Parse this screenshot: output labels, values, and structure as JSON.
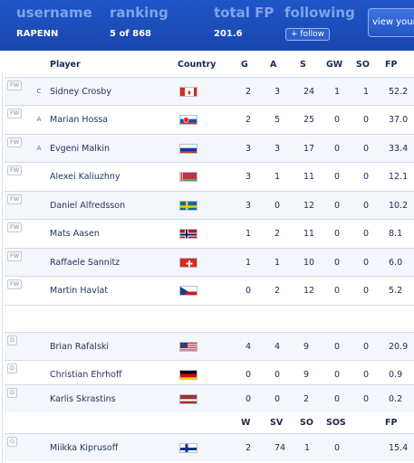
{
  "header": {
    "username_label": "username",
    "username": "RAPENN",
    "ranking_label": "ranking",
    "ranking": "5 of 868",
    "total_fp_label": "total FP",
    "total_fp": "201.6",
    "following_label": "following",
    "follow_button": "+ follow",
    "view_button": "view your"
  },
  "skater_columns": {
    "player": "Player",
    "country": "Country",
    "g": "G",
    "a": "A",
    "s": "S",
    "gw": "GW",
    "so": "SO",
    "fp": "FP"
  },
  "skaters": [
    {
      "pos": "FW",
      "role": "C",
      "name": "Sidney Crosby",
      "flag": "canada-flag",
      "g": "2",
      "a": "3",
      "s": "24",
      "gw": "1",
      "so": "1",
      "fp": "52.2"
    },
    {
      "pos": "FW",
      "role": "A",
      "name": "Marian Hossa",
      "flag": "slovakia-flag",
      "g": "2",
      "a": "5",
      "s": "25",
      "gw": "0",
      "so": "0",
      "fp": "37.0"
    },
    {
      "pos": "FW",
      "role": "A",
      "name": "Evgeni Malkin",
      "flag": "russia-flag",
      "g": "3",
      "a": "3",
      "s": "17",
      "gw": "0",
      "so": "0",
      "fp": "33.4"
    },
    {
      "pos": "FW",
      "role": "",
      "name": "Alexei Kaliuzhny",
      "flag": "belarus-flag",
      "g": "3",
      "a": "1",
      "s": "11",
      "gw": "0",
      "so": "0",
      "fp": "12.1"
    },
    {
      "pos": "FW",
      "role": "",
      "name": "Daniel Alfredsson",
      "flag": "sweden-flag",
      "g": "3",
      "a": "0",
      "s": "12",
      "gw": "0",
      "so": "0",
      "fp": "10.2"
    },
    {
      "pos": "FW",
      "role": "",
      "name": "Mats Aasen",
      "flag": "norway-flag",
      "g": "1",
      "a": "2",
      "s": "11",
      "gw": "0",
      "so": "0",
      "fp": "8.1"
    },
    {
      "pos": "FW",
      "role": "",
      "name": "Raffaele Sannitz",
      "flag": "switzerland-flag",
      "g": "1",
      "a": "1",
      "s": "10",
      "gw": "0",
      "so": "0",
      "fp": "6.0"
    },
    {
      "pos": "FW",
      "role": "",
      "name": "Martin Havlat",
      "flag": "czech-flag",
      "g": "0",
      "a": "2",
      "s": "12",
      "gw": "0",
      "so": "0",
      "fp": "5.2"
    },
    {
      "pos": "D",
      "role": "",
      "name": "Brian Rafalski",
      "flag": "usa-flag",
      "g": "4",
      "a": "4",
      "s": "9",
      "gw": "0",
      "so": "0",
      "fp": "20.9"
    },
    {
      "pos": "D",
      "role": "",
      "name": "Christian Ehrhoff",
      "flag": "germany-flag",
      "g": "0",
      "a": "0",
      "s": "9",
      "gw": "0",
      "so": "0",
      "fp": "0.9"
    },
    {
      "pos": "D",
      "role": "",
      "name": "Karlis Skrastins",
      "flag": "latvia-flag",
      "g": "0",
      "a": "0",
      "s": "2",
      "gw": "0",
      "so": "0",
      "fp": "0.2"
    }
  ],
  "goalie_columns": {
    "w": "W",
    "sv": "SV",
    "so": "SO",
    "sos": "SOS",
    "fp": "FP"
  },
  "goalies": [
    {
      "pos": "G",
      "name": "Miikka Kiprusoff",
      "flag": "finland-flag",
      "w": "2",
      "sv": "74",
      "so": "1",
      "sos": "0",
      "fp": "15.4"
    }
  ]
}
